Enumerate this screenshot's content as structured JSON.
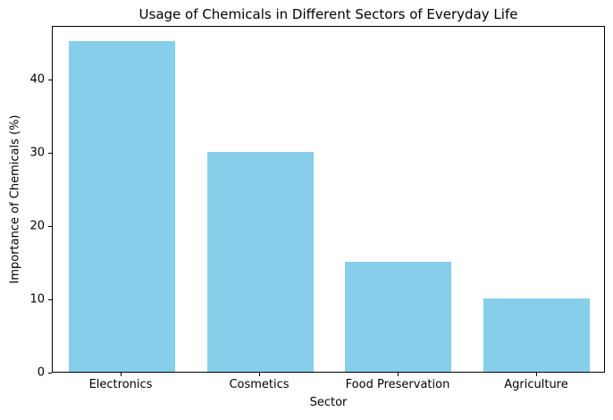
{
  "chart_data": {
    "type": "bar",
    "title": "Usage of Chemicals in Different Sectors of Everyday Life",
    "xlabel": "Sector",
    "ylabel": "Importance of Chemicals (%)",
    "categories": [
      "Electronics",
      "Cosmetics",
      "Food Preservation",
      "Agriculture"
    ],
    "values": [
      45,
      30,
      15,
      10
    ],
    "yticks": [
      0,
      10,
      20,
      30,
      40
    ],
    "ylim": [
      0,
      47.25
    ],
    "bar_color": "#87CEEB",
    "axis_color": "#000000",
    "text_color": "#000000",
    "background_color": "#ffffff",
    "grid": false,
    "legend_position": "none"
  }
}
